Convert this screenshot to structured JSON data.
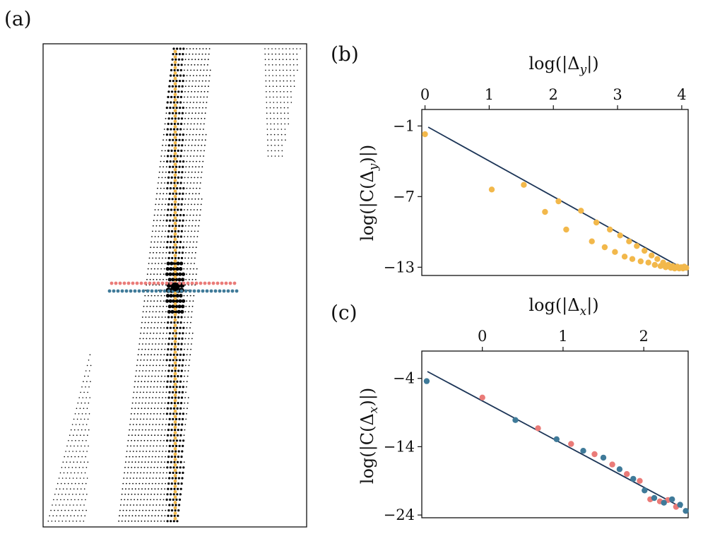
{
  "panels": {
    "a": "(a)",
    "b": "(b)",
    "c": "(c)"
  },
  "colors": {
    "yellow": "#F2B84B",
    "red": "#EA7B78",
    "blue": "#3F7A99",
    "line": "#1C3557",
    "dots": "#000000"
  },
  "chart_data": [
    {
      "id": "a",
      "type": "scatter",
      "title": "(a)",
      "description_series": [
        {
          "name": "vertical cut (yellow)",
          "color": "#F2B84B"
        },
        {
          "name": "horizontal cut above center (red)",
          "color": "#EA7B78"
        },
        {
          "name": "horizontal cut below center (blue)",
          "color": "#3F7A99"
        }
      ]
    },
    {
      "id": "b",
      "type": "scatter",
      "title": "(b)",
      "xlabel": "log(|Δy|)",
      "ylabel": "log(|C(Δy)|)",
      "xlim": [
        -0.05,
        4.1
      ],
      "ylim": [
        -13.7,
        0.4
      ],
      "xticks": [
        0,
        1,
        2,
        3,
        4
      ],
      "yticks": [
        -1,
        -7,
        -13
      ],
      "xtick_labels": [
        "0",
        "1",
        "2",
        "3",
        "4"
      ],
      "ytick_labels": [
        "−1",
        "−7",
        "−13"
      ],
      "fit_line": {
        "x": [
          0.05,
          3.95
        ],
        "y": [
          -1.1,
          -12.9
        ]
      },
      "series": [
        {
          "name": "vertical",
          "color": "#F2B84B",
          "x": [
            0.0,
            1.04,
            1.54,
            1.87,
            2.08,
            2.2,
            2.43,
            2.6,
            2.67,
            2.8,
            2.88,
            2.96,
            3.04,
            3.11,
            3.18,
            3.23,
            3.3,
            3.36,
            3.42,
            3.48,
            3.53,
            3.58,
            3.62,
            3.67,
            3.71,
            3.75,
            3.79,
            3.83,
            3.86,
            3.89,
            3.93,
            3.96,
            3.99,
            4.02,
            4.04,
            4.07
          ],
          "y": [
            -1.7,
            -6.4,
            -6.0,
            -8.3,
            -7.4,
            -9.8,
            -8.2,
            -10.8,
            -9.2,
            -11.3,
            -9.8,
            -11.7,
            -10.3,
            -12.1,
            -10.8,
            -12.3,
            -11.2,
            -12.5,
            -11.6,
            -12.6,
            -12.0,
            -12.8,
            -12.3,
            -12.9,
            -12.6,
            -13.0,
            -12.8,
            -13.05,
            -12.9,
            -13.1,
            -12.95,
            -13.1,
            -13.0,
            -13.1,
            -12.95,
            -13.05
          ]
        }
      ]
    },
    {
      "id": "c",
      "type": "scatter",
      "title": "(c)",
      "xlabel": "log(|Δx|)",
      "ylabel": "log(|C(Δx)|)",
      "xlim": [
        -0.75,
        2.55
      ],
      "ylim": [
        -24.4,
        0.0
      ],
      "xticks": [
        0,
        1,
        2
      ],
      "yticks": [
        -4,
        -14,
        -24
      ],
      "xtick_labels": [
        "0",
        "1",
        "2"
      ],
      "ytick_labels": [
        "−4",
        "−14",
        "−24"
      ],
      "fit_line": {
        "x": [
          -0.68,
          2.47
        ],
        "y": [
          -3.0,
          -22.9
        ]
      },
      "series": [
        {
          "name": "red",
          "color": "#EA7B78",
          "x": [
            0.0,
            0.69,
            1.1,
            1.39,
            1.61,
            1.79,
            1.95,
            2.08,
            2.2,
            2.3,
            2.4
          ],
          "y": [
            -6.8,
            -11.3,
            -13.6,
            -15.1,
            -16.6,
            -18.0,
            -19.0,
            -21.7,
            -22.0,
            -21.8,
            -22.8
          ]
        },
        {
          "name": "blue",
          "color": "#3F7A99",
          "x": [
            -0.69,
            0.41,
            0.92,
            1.25,
            1.5,
            1.7,
            1.87,
            2.01,
            2.13,
            2.25,
            2.35,
            2.45,
            2.52
          ],
          "y": [
            -4.4,
            -10.1,
            -12.9,
            -14.6,
            -15.6,
            -17.3,
            -18.7,
            -20.4,
            -21.5,
            -22.2,
            -21.7,
            -22.5,
            -23.4
          ]
        }
      ]
    }
  ],
  "panel_b": {
    "xlabel_text": "log(|Δ",
    "xlabel_sub": "y",
    "xlabel_close": "|)",
    "ylabel_text": "log(|C(Δ",
    "ylabel_sub": "y",
    "ylabel_close": ")|)"
  },
  "panel_c": {
    "xlabel_text": "log(|Δ",
    "xlabel_sub": "x",
    "xlabel_close": "|)",
    "ylabel_text": "log(|C(Δ",
    "ylabel_sub": "x",
    "ylabel_close": ")|)"
  }
}
